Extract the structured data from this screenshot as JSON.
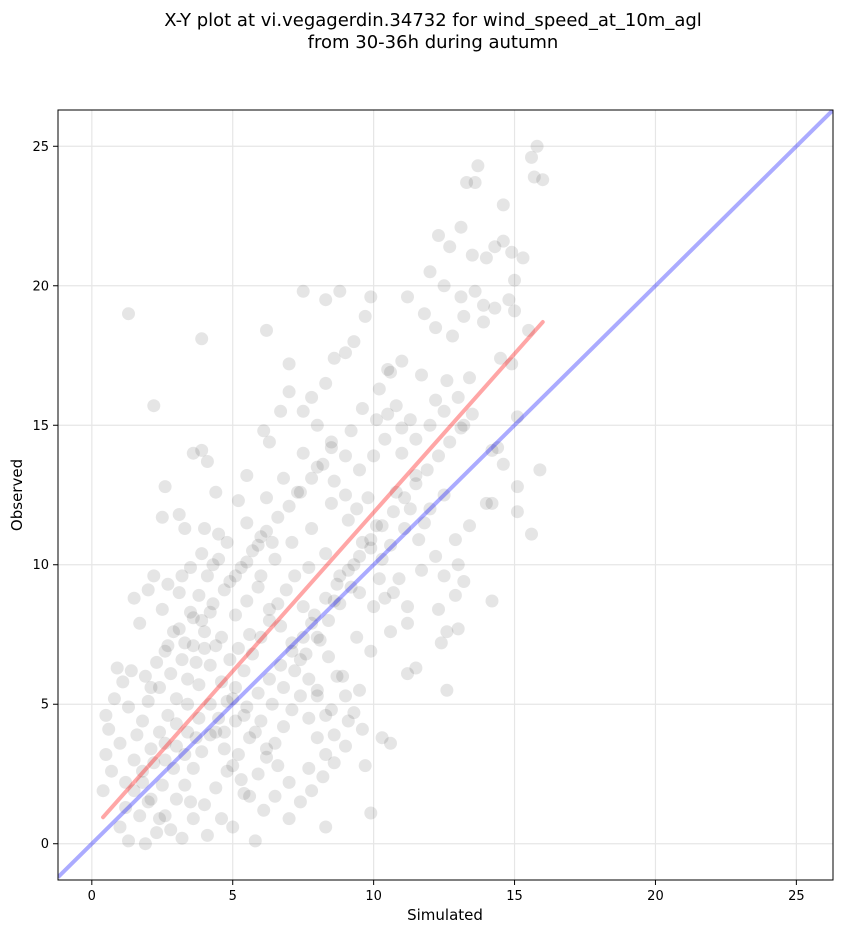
{
  "chart_data": {
    "type": "scatter",
    "title": "X-Y plot at vi.vegagerdin.34732 for wind_speed_at_10m_agl",
    "subtitle": "from 30-36h during autumn",
    "xlabel": "Simulated",
    "ylabel": "Observed",
    "xlim": [
      -1.2,
      26.3
    ],
    "ylim": [
      -1.3,
      26.3
    ],
    "xticks": [
      0,
      5,
      10,
      15,
      20,
      25
    ],
    "yticks": [
      0,
      5,
      10,
      15,
      20,
      25
    ],
    "grid": true,
    "point_color": "#000000",
    "point_alpha": 0.1,
    "identity_line": {
      "x": [
        -1.2,
        26.3
      ],
      "y": [
        -1.2,
        26.3
      ],
      "color": "#0000ff"
    },
    "fit_line": {
      "x": [
        0.4,
        16.0
      ],
      "y": [
        0.95,
        18.7
      ],
      "color": "#ff0000"
    },
    "points": [
      [
        1.3,
        19.0
      ],
      [
        2.2,
        15.7
      ],
      [
        3.9,
        18.1
      ],
      [
        6.2,
        18.4
      ],
      [
        7.0,
        17.2
      ],
      [
        7.5,
        19.8
      ],
      [
        8.3,
        19.5
      ],
      [
        8.8,
        19.8
      ],
      [
        9.3,
        18.0
      ],
      [
        9.9,
        19.6
      ],
      [
        9.7,
        18.9
      ],
      [
        10.5,
        17.0
      ],
      [
        13.7,
        24.3
      ],
      [
        13.3,
        23.7
      ],
      [
        13.6,
        23.7
      ],
      [
        14.6,
        22.9
      ],
      [
        15.6,
        24.6
      ],
      [
        15.8,
        25.0
      ],
      [
        16.0,
        23.8
      ],
      [
        15.7,
        23.9
      ],
      [
        12.3,
        21.8
      ],
      [
        12.7,
        21.4
      ],
      [
        13.1,
        22.1
      ],
      [
        13.5,
        21.1
      ],
      [
        14.0,
        21.0
      ],
      [
        14.3,
        21.4
      ],
      [
        14.6,
        21.6
      ],
      [
        14.9,
        21.2
      ],
      [
        15.3,
        21.0
      ],
      [
        15.0,
        20.2
      ],
      [
        12.0,
        20.5
      ],
      [
        12.5,
        20.0
      ],
      [
        13.1,
        19.6
      ],
      [
        13.6,
        19.8
      ],
      [
        13.9,
        19.3
      ],
      [
        14.3,
        19.2
      ],
      [
        14.8,
        19.5
      ],
      [
        15.0,
        19.1
      ],
      [
        11.2,
        19.6
      ],
      [
        11.8,
        19.0
      ],
      [
        12.2,
        18.5
      ],
      [
        12.8,
        18.2
      ],
      [
        13.2,
        18.9
      ],
      [
        13.9,
        18.7
      ],
      [
        14.5,
        17.4
      ],
      [
        14.9,
        17.2
      ],
      [
        15.1,
        15.3
      ],
      [
        15.5,
        18.4
      ],
      [
        12.6,
        16.6
      ],
      [
        13.4,
        16.7
      ],
      [
        11.0,
        17.3
      ],
      [
        10.6,
        16.9
      ],
      [
        11.7,
        16.8
      ],
      [
        12.2,
        15.9
      ],
      [
        10.2,
        16.3
      ],
      [
        10.8,
        15.7
      ],
      [
        11.3,
        15.2
      ],
      [
        13.2,
        15.0
      ],
      [
        14.4,
        14.2
      ],
      [
        14.2,
        14.1
      ],
      [
        14.6,
        13.6
      ],
      [
        15.9,
        13.4
      ],
      [
        15.1,
        12.8
      ],
      [
        15.6,
        11.1
      ],
      [
        15.1,
        11.9
      ],
      [
        14.0,
        12.2
      ],
      [
        14.2,
        12.2
      ],
      [
        13.4,
        11.4
      ],
      [
        12.9,
        10.9
      ],
      [
        13.0,
        10.0
      ],
      [
        12.5,
        9.6
      ],
      [
        13.2,
        9.4
      ],
      [
        12.9,
        8.9
      ],
      [
        14.2,
        8.7
      ],
      [
        12.3,
        8.4
      ],
      [
        12.6,
        7.6
      ],
      [
        13.0,
        7.7
      ],
      [
        12.4,
        7.2
      ],
      [
        11.5,
        6.3
      ],
      [
        11.2,
        6.1
      ],
      [
        12.6,
        5.5
      ],
      [
        10.6,
        7.6
      ],
      [
        11.2,
        7.9
      ],
      [
        10.4,
        8.8
      ],
      [
        10.9,
        9.5
      ],
      [
        10.3,
        3.8
      ],
      [
        10.6,
        3.6
      ],
      [
        9.9,
        1.1
      ],
      [
        8.3,
        0.6
      ],
      [
        9.7,
        2.8
      ],
      [
        9.1,
        4.4
      ],
      [
        8.5,
        4.8
      ],
      [
        8.0,
        5.5
      ],
      [
        8.9,
        6.0
      ],
      [
        9.5,
        5.5
      ],
      [
        9.9,
        6.9
      ],
      [
        9.4,
        7.4
      ],
      [
        10.0,
        8.5
      ],
      [
        9.5,
        9.0
      ],
      [
        8.6,
        8.7
      ],
      [
        6.3,
        14.4
      ],
      [
        5.5,
        13.2
      ],
      [
        4.4,
        12.6
      ],
      [
        5.2,
        12.3
      ],
      [
        5.5,
        11.5
      ],
      [
        4.5,
        11.1
      ],
      [
        4.0,
        11.3
      ],
      [
        3.1,
        11.8
      ],
      [
        3.3,
        11.3
      ],
      [
        2.6,
        12.8
      ],
      [
        3.6,
        14.0
      ],
      [
        3.9,
        14.1
      ],
      [
        4.1,
        13.7
      ],
      [
        2.5,
        11.7
      ],
      [
        6.1,
        14.8
      ],
      [
        6.7,
        15.5
      ],
      [
        7.0,
        16.2
      ],
      [
        7.8,
        16.0
      ],
      [
        8.3,
        16.5
      ],
      [
        8.6,
        17.4
      ],
      [
        9.0,
        17.6
      ],
      [
        7.5,
        14.0
      ],
      [
        8.0,
        13.5
      ],
      [
        8.5,
        14.2
      ],
      [
        9.2,
        14.8
      ],
      [
        9.6,
        15.6
      ],
      [
        10.1,
        15.2
      ],
      [
        10.4,
        14.5
      ],
      [
        11.0,
        14.0
      ],
      [
        11.5,
        13.2
      ],
      [
        10.8,
        12.6
      ],
      [
        11.3,
        12.0
      ],
      [
        11.8,
        11.5
      ],
      [
        10.1,
        11.4
      ],
      [
        9.6,
        10.8
      ],
      [
        9.1,
        11.6
      ],
      [
        8.5,
        12.2
      ],
      [
        7.8,
        11.3
      ],
      [
        7.3,
        12.6
      ],
      [
        6.8,
        13.1
      ],
      [
        6.2,
        12.4
      ],
      [
        6.0,
        11.0
      ],
      [
        6.5,
        10.2
      ],
      [
        7.1,
        10.8
      ],
      [
        7.7,
        9.9
      ],
      [
        8.3,
        10.4
      ],
      [
        8.8,
        9.6
      ],
      [
        9.3,
        10.0
      ],
      [
        9.9,
        10.6
      ],
      [
        10.3,
        10.2
      ],
      [
        0.4,
        1.9
      ],
      [
        0.5,
        3.2
      ],
      [
        0.6,
        4.1
      ],
      [
        0.5,
        4.6
      ],
      [
        0.8,
        5.2
      ],
      [
        0.9,
        6.3
      ],
      [
        1.1,
        5.8
      ],
      [
        1.3,
        4.9
      ],
      [
        1.0,
        3.6
      ],
      [
        0.7,
        2.6
      ],
      [
        1.2,
        2.2
      ],
      [
        1.5,
        3.0
      ],
      [
        1.6,
        3.9
      ],
      [
        1.8,
        4.4
      ],
      [
        2.1,
        5.6
      ],
      [
        1.4,
        6.2
      ],
      [
        1.9,
        6.0
      ],
      [
        1.7,
        7.9
      ],
      [
        2.0,
        9.1
      ],
      [
        2.2,
        9.6
      ],
      [
        1.5,
        8.8
      ],
      [
        2.5,
        8.4
      ],
      [
        2.7,
        9.3
      ],
      [
        3.1,
        9.0
      ],
      [
        2.9,
        7.6
      ],
      [
        2.6,
        6.9
      ],
      [
        3.3,
        7.2
      ],
      [
        3.6,
        8.1
      ],
      [
        3.8,
        8.9
      ],
      [
        4.1,
        9.6
      ],
      [
        4.5,
        10.2
      ],
      [
        4.8,
        10.8
      ],
      [
        4.2,
        8.3
      ],
      [
        4.6,
        7.4
      ],
      [
        4.0,
        7.0
      ],
      [
        3.7,
        6.5
      ],
      [
        3.4,
        5.9
      ],
      [
        3.0,
        5.2
      ],
      [
        2.7,
        4.6
      ],
      [
        2.4,
        4.0
      ],
      [
        2.1,
        3.4
      ],
      [
        1.8,
        2.6
      ],
      [
        1.5,
        1.9
      ],
      [
        1.2,
        1.3
      ],
      [
        1.0,
        0.6
      ],
      [
        1.3,
        0.1
      ],
      [
        1.9,
        0.0
      ],
      [
        2.3,
        0.4
      ],
      [
        2.6,
        1.0
      ],
      [
        3.0,
        1.6
      ],
      [
        3.3,
        2.1
      ],
      [
        3.6,
        2.7
      ],
      [
        3.9,
        3.3
      ],
      [
        4.2,
        3.9
      ],
      [
        4.5,
        4.5
      ],
      [
        4.8,
        5.1
      ],
      [
        5.1,
        5.6
      ],
      [
        5.4,
        6.2
      ],
      [
        5.7,
        6.8
      ],
      [
        6.0,
        7.4
      ],
      [
        6.3,
        8.0
      ],
      [
        6.6,
        8.6
      ],
      [
        6.9,
        9.1
      ],
      [
        7.2,
        9.6
      ],
      [
        7.5,
        8.5
      ],
      [
        7.8,
        7.9
      ],
      [
        8.1,
        7.3
      ],
      [
        8.4,
        6.7
      ],
      [
        8.7,
        6.0
      ],
      [
        9.0,
        5.3
      ],
      [
        9.3,
        4.7
      ],
      [
        9.6,
        4.1
      ],
      [
        9.0,
        3.5
      ],
      [
        8.6,
        2.9
      ],
      [
        8.2,
        2.4
      ],
      [
        7.8,
        1.9
      ],
      [
        7.4,
        1.5
      ],
      [
        7.0,
        2.2
      ],
      [
        6.6,
        2.8
      ],
      [
        6.2,
        3.4
      ],
      [
        5.8,
        4.0
      ],
      [
        5.4,
        4.6
      ],
      [
        5.0,
        5.2
      ],
      [
        4.6,
        5.8
      ],
      [
        4.2,
        6.4
      ],
      [
        3.8,
        5.7
      ],
      [
        3.4,
        5.0
      ],
      [
        3.0,
        4.3
      ],
      [
        2.6,
        3.6
      ],
      [
        2.2,
        2.9
      ],
      [
        1.8,
        2.2
      ],
      [
        2.0,
        1.5
      ],
      [
        2.4,
        0.9
      ],
      [
        2.8,
        0.5
      ],
      [
        3.2,
        0.2
      ],
      [
        3.6,
        0.9
      ],
      [
        4.0,
        1.4
      ],
      [
        4.4,
        2.0
      ],
      [
        4.8,
        2.6
      ],
      [
        5.2,
        3.2
      ],
      [
        5.6,
        3.8
      ],
      [
        6.0,
        4.4
      ],
      [
        6.4,
        5.0
      ],
      [
        6.8,
        5.6
      ],
      [
        7.2,
        6.2
      ],
      [
        7.6,
        6.8
      ],
      [
        8.0,
        7.4
      ],
      [
        8.4,
        8.0
      ],
      [
        8.8,
        8.6
      ],
      [
        9.2,
        9.2
      ],
      [
        5.0,
        0.6
      ],
      [
        5.8,
        0.1
      ],
      [
        6.1,
        1.2
      ],
      [
        5.4,
        1.8
      ],
      [
        4.6,
        0.9
      ],
      [
        4.1,
        0.3
      ],
      [
        3.5,
        1.5
      ],
      [
        6.5,
        1.7
      ],
      [
        7.0,
        0.9
      ],
      [
        7.7,
        2.7
      ],
      [
        3.2,
        9.6
      ],
      [
        3.5,
        9.9
      ],
      [
        3.9,
        10.4
      ],
      [
        4.3,
        10.0
      ],
      [
        4.9,
        9.4
      ],
      [
        5.3,
        9.9
      ],
      [
        5.7,
        10.5
      ],
      [
        6.0,
        9.6
      ],
      [
        6.4,
        10.8
      ],
      [
        5.1,
        8.2
      ],
      [
        5.5,
        8.7
      ],
      [
        5.9,
        9.2
      ],
      [
        6.3,
        8.4
      ],
      [
        6.7,
        7.8
      ],
      [
        7.1,
        7.2
      ],
      [
        7.4,
        6.6
      ],
      [
        7.7,
        5.9
      ],
      [
        8.0,
        5.3
      ],
      [
        8.3,
        4.6
      ],
      [
        8.6,
        3.9
      ],
      [
        5.2,
        7.0
      ],
      [
        5.6,
        7.5
      ],
      [
        4.9,
        6.6
      ],
      [
        4.4,
        7.1
      ],
      [
        4.0,
        7.6
      ],
      [
        3.6,
        7.1
      ],
      [
        3.2,
        6.6
      ],
      [
        2.8,
        6.1
      ],
      [
        2.4,
        5.6
      ],
      [
        2.0,
        5.1
      ],
      [
        2.3,
        6.5
      ],
      [
        2.7,
        7.1
      ],
      [
        3.1,
        7.7
      ],
      [
        3.5,
        8.3
      ],
      [
        3.9,
        8.0
      ],
      [
        4.3,
        8.6
      ],
      [
        4.7,
        9.1
      ],
      [
        5.1,
        9.6
      ],
      [
        5.5,
        10.1
      ],
      [
        5.9,
        10.7
      ],
      [
        6.2,
        11.2
      ],
      [
        6.6,
        11.7
      ],
      [
        7.0,
        12.1
      ],
      [
        7.4,
        12.6
      ],
      [
        7.8,
        13.1
      ],
      [
        8.2,
        13.6
      ],
      [
        8.6,
        13.0
      ],
      [
        9.0,
        12.5
      ],
      [
        9.4,
        12.0
      ],
      [
        9.8,
        12.4
      ],
      [
        4.4,
        4.0
      ],
      [
        4.7,
        3.4
      ],
      [
        5.0,
        2.8
      ],
      [
        5.3,
        2.3
      ],
      [
        5.6,
        1.7
      ],
      [
        5.9,
        2.5
      ],
      [
        6.2,
        3.1
      ],
      [
        6.5,
        3.6
      ],
      [
        6.8,
        4.2
      ],
      [
        7.1,
        4.8
      ],
      [
        7.4,
        5.3
      ],
      [
        7.7,
        4.5
      ],
      [
        8.0,
        3.8
      ],
      [
        8.3,
        3.2
      ],
      [
        3.7,
        3.8
      ],
      [
        3.3,
        3.2
      ],
      [
        2.9,
        2.7
      ],
      [
        2.5,
        2.1
      ],
      [
        2.1,
        1.6
      ],
      [
        1.7,
        1.0
      ],
      [
        4.2,
        5.0
      ],
      [
        3.8,
        4.5
      ],
      [
        3.4,
        4.0
      ],
      [
        3.0,
        3.5
      ],
      [
        2.6,
        3.0
      ],
      [
        4.7,
        4.0
      ],
      [
        5.1,
        4.4
      ],
      [
        5.5,
        4.9
      ],
      [
        5.9,
        5.4
      ],
      [
        6.3,
        5.9
      ],
      [
        6.7,
        6.4
      ],
      [
        7.1,
        6.9
      ],
      [
        7.5,
        7.4
      ],
      [
        7.9,
        8.2
      ],
      [
        8.3,
        8.8
      ],
      [
        8.7,
        9.3
      ],
      [
        9.1,
        9.8
      ],
      [
        9.5,
        10.3
      ],
      [
        9.9,
        10.9
      ],
      [
        10.3,
        11.4
      ],
      [
        10.7,
        11.9
      ],
      [
        11.1,
        12.4
      ],
      [
        11.5,
        12.9
      ],
      [
        11.9,
        13.4
      ],
      [
        12.3,
        13.9
      ],
      [
        12.7,
        14.4
      ],
      [
        13.1,
        14.9
      ],
      [
        13.5,
        15.4
      ],
      [
        13.0,
        16.0
      ],
      [
        12.5,
        15.5
      ],
      [
        12.0,
        15.0
      ],
      [
        11.5,
        14.5
      ],
      [
        11.0,
        14.9
      ],
      [
        10.5,
        15.4
      ],
      [
        10.0,
        13.9
      ],
      [
        9.5,
        13.4
      ],
      [
        9.0,
        13.9
      ],
      [
        8.5,
        14.4
      ],
      [
        8.0,
        15.0
      ],
      [
        7.5,
        15.5
      ],
      [
        10.2,
        9.5
      ],
      [
        10.7,
        9.0
      ],
      [
        11.2,
        8.5
      ],
      [
        11.7,
        9.8
      ],
      [
        12.2,
        10.3
      ],
      [
        11.6,
        10.9
      ],
      [
        11.1,
        11.3
      ],
      [
        10.6,
        10.7
      ],
      [
        12.0,
        12.0
      ],
      [
        12.5,
        12.5
      ]
    ]
  }
}
